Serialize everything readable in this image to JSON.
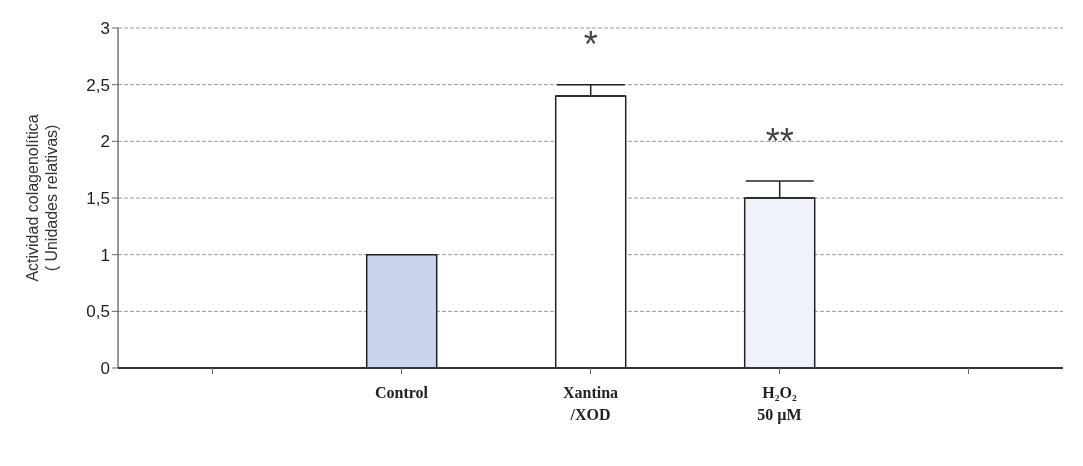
{
  "chart_data": {
    "type": "bar",
    "ylabel": "Actividad colagenolítica\n( Unidades relativas)",
    "categories": [
      null,
      "Control",
      "Xantina\n/XOD",
      "H₂O₂\n50 µM",
      null
    ],
    "values": [
      null,
      1.0,
      2.4,
      1.5,
      null
    ],
    "colors": [
      "#c9d5ec",
      "#c9d5ec",
      "#ffffff",
      "#eef3fb",
      "#c9d5ec"
    ],
    "errors": [
      null,
      null,
      [
        2.4,
        2.5
      ],
      [
        1.5,
        1.65
      ],
      null
    ],
    "ylim": [
      0,
      3
    ],
    "yticks": [
      0,
      {
        "value": 0.5,
        "label": "0,5"
      },
      1,
      {
        "value": 1.5,
        "label": "1,5"
      },
      2,
      {
        "value": 2.5,
        "label": "2,5"
      },
      3
    ],
    "grid": "y",
    "legend": false,
    "annotations": [
      {
        "text": "*",
        "x": "Xantina\n/XOD",
        "y": 2.5
      },
      {
        "text": "**",
        "x": "H₂O₂\n50 µM",
        "y": 1.65
      }
    ]
  }
}
